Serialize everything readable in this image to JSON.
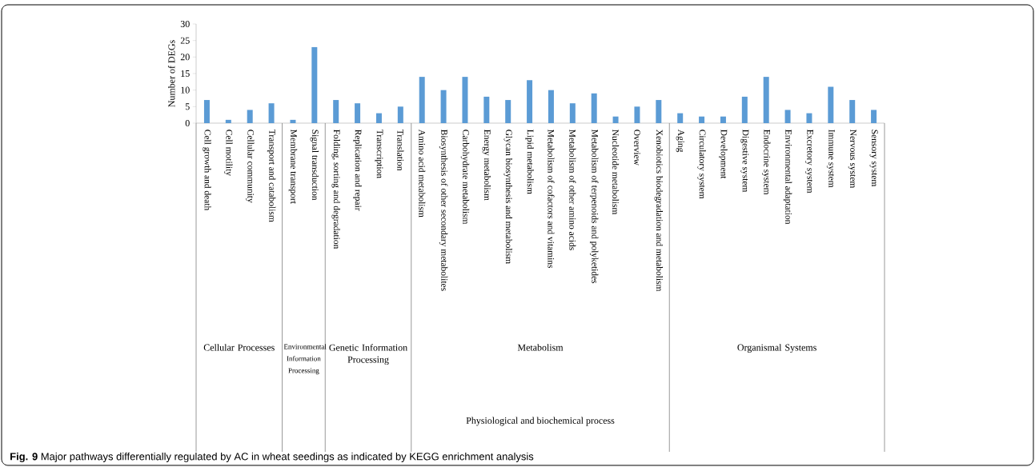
{
  "chart_data": {
    "type": "bar",
    "ylabel": "Number of DEGs",
    "categories": [
      "Cell growth and death",
      "Cell motility",
      "Cellular community",
      "Transport and catabolism",
      "Membrane transport",
      "Signal transduction",
      "Folding, sorting and degradation",
      "Replication and repair",
      "Transcription",
      "Translation",
      "Amino acid metabolism",
      "Biosynthesis of other secondary metabolites",
      "Carbohydrate metabolism",
      "Energy metabolism",
      "Glycan biosynthesis and metabolism",
      "Lipid metabolism",
      "Metabolism of cofactors and vitamins",
      "Metabolism of other amino acids",
      "Metabolism of terpenoids and polyketides",
      "Nucleotide metabolism",
      "Overview",
      "Xenobiotics biodegradation and metabolism",
      "Aging",
      "Circulatory system",
      "Development",
      "Digestive system",
      "Endocrine system",
      "Environmental adaptation",
      "Excretory system",
      "Immune system",
      "Nervous system",
      "Sensory system"
    ],
    "values": [
      7,
      1,
      4,
      6,
      1,
      23,
      7,
      6,
      3,
      5,
      14,
      10,
      14,
      8,
      7,
      13,
      10,
      6,
      9,
      2,
      5,
      7,
      3,
      2,
      2,
      8,
      14,
      4,
      3,
      11,
      7,
      4
    ],
    "color": "#5b9bd5",
    "ylim": [
      0,
      30
    ],
    "yticks": [
      0,
      5,
      10,
      15,
      20,
      25,
      30
    ],
    "grid": false,
    "annotations": [
      "Cellular Processes",
      "Environmental Information Processing",
      "Genetic Information Processing",
      "Metabolism",
      "Organismal Systems",
      "Physiological and biochemical process",
      "**Fig. 9** Major pathways differentially regulated by AC in wheat seedings as indicated by KEGG enrichment analysis"
    ]
  }
}
